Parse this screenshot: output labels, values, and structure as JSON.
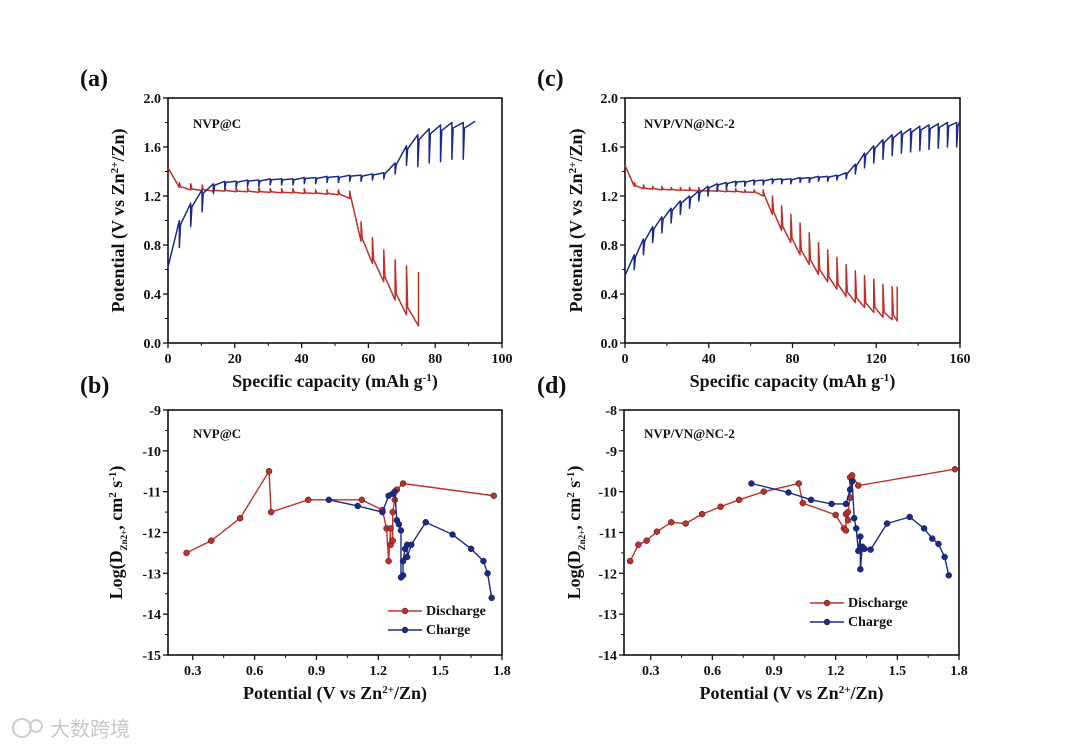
{
  "watermark": "大数跨境",
  "colors": {
    "discharge": "#c0302a",
    "charge": "#1a2a8c"
  },
  "chart_data": [
    {
      "id": "a",
      "panel_label": "(a)",
      "type": "line",
      "sample": "NVP@C",
      "xlabel": [
        {
          "t": "Specific capacity (mAh g"
        },
        {
          "t": "-1",
          "sup": true
        },
        {
          "t": ")"
        }
      ],
      "ylabel": [
        {
          "t": "Potential (V vs Zn"
        },
        {
          "t": "2+",
          "sup": true
        },
        {
          "t": "/Zn)"
        }
      ],
      "xlim": [
        0,
        100
      ],
      "ylim": [
        0,
        2.0
      ],
      "xticks": [
        "0",
        "20",
        "40",
        "60",
        "80",
        "100"
      ],
      "xtick_values": [
        0,
        20,
        40,
        60,
        80,
        100
      ],
      "yticks": [
        "0.0",
        "0.4",
        "0.8",
        "1.2",
        "1.6",
        "2.0"
      ],
      "ytick_values": [
        0,
        0.4,
        0.8,
        1.2,
        1.6,
        2.0
      ],
      "gitt": [
        {
          "name": "discharge",
          "start": [
            0,
            1.43
          ],
          "x": [
            3.4,
            6.8,
            10.2,
            13.6,
            17,
            20.4,
            23.8,
            27.2,
            30.6,
            34,
            37.4,
            40.8,
            44.2,
            47.6,
            51,
            54.4,
            57.8,
            61.2,
            64.6,
            68,
            71.4,
            75
          ],
          "end": [
            1.27,
            1.25,
            1.245,
            1.24,
            1.24,
            1.235,
            1.235,
            1.23,
            1.23,
            1.225,
            1.225,
            1.22,
            1.22,
            1.215,
            1.21,
            1.18,
            0.83,
            0.65,
            0.5,
            0.35,
            0.23,
            0.14
          ],
          "relaxed": [
            1.31,
            1.3,
            1.29,
            1.28,
            1.27,
            1.27,
            1.27,
            1.27,
            1.26,
            1.26,
            1.26,
            1.26,
            1.25,
            1.25,
            1.25,
            1.24,
            0.99,
            0.86,
            0.76,
            0.68,
            0.63,
            0.58
          ]
        },
        {
          "name": "charge",
          "start": [
            0,
            0.62
          ],
          "x": [
            3.4,
            6.8,
            10.2,
            13.6,
            17,
            20.4,
            23.8,
            27.2,
            30.6,
            34,
            37.4,
            40.8,
            44.2,
            47.6,
            51,
            54.4,
            57.8,
            61.2,
            64.6,
            68,
            71.4,
            74.8,
            78.2,
            81.6,
            85,
            88.4
          ],
          "end": [
            1.0,
            1.14,
            1.25,
            1.3,
            1.32,
            1.32,
            1.33,
            1.33,
            1.34,
            1.34,
            1.34,
            1.35,
            1.35,
            1.36,
            1.36,
            1.37,
            1.37,
            1.38,
            1.39,
            1.47,
            1.61,
            1.7,
            1.75,
            1.78,
            1.8,
            1.8
          ],
          "relaxed": [
            0.78,
            0.95,
            1.07,
            1.22,
            1.26,
            1.27,
            1.28,
            1.28,
            1.29,
            1.29,
            1.29,
            1.3,
            1.3,
            1.31,
            1.31,
            1.32,
            1.32,
            1.33,
            1.34,
            1.38,
            1.45,
            1.44,
            1.47,
            1.48,
            1.5,
            1.5
          ],
          "final": [
            92,
            1.81
          ]
        }
      ]
    },
    {
      "id": "b",
      "panel_label": "(b)",
      "type": "line",
      "sample": "NVP@C",
      "xlabel": [
        {
          "t": "Potential (V vs Zn"
        },
        {
          "t": "2+",
          "sup": true
        },
        {
          "t": "/Zn)"
        }
      ],
      "ylabel": [
        {
          "t": "Log(D"
        },
        {
          "t": "Zn2+",
          "sub": true
        },
        {
          "t": ", cm"
        },
        {
          "t": "2",
          "sup": true
        },
        {
          "t": " s"
        },
        {
          "t": "-1",
          "sup": true
        },
        {
          "t": ")"
        }
      ],
      "xlim": [
        0.18,
        1.8
      ],
      "ylim": [
        -15,
        -9
      ],
      "xticks": [
        "0.3",
        "0.6",
        "0.9",
        "1.2",
        "1.5",
        "1.8"
      ],
      "xtick_values": [
        0.3,
        0.6,
        0.9,
        1.2,
        1.5,
        1.8
      ],
      "yticks": [
        "-15",
        "-14",
        "-13",
        "-12",
        "-11",
        "-10",
        "-9"
      ],
      "ytick_values": [
        -15,
        -14,
        -13,
        -12,
        -11,
        -10,
        -9
      ],
      "legend": [
        "Discharge",
        "Charge"
      ],
      "legend_position": "bottom-right",
      "series": [
        {
          "name": "Discharge",
          "x": [
            0.27,
            0.39,
            0.53,
            0.67,
            0.68,
            0.86,
            1.12,
            1.22,
            1.24,
            1.25,
            1.26,
            1.26,
            1.27,
            1.27,
            1.28,
            1.29,
            1.32,
            1.76
          ],
          "y": [
            -12.5,
            -12.2,
            -11.65,
            -10.5,
            -11.5,
            -11.2,
            -11.2,
            -11.45,
            -11.9,
            -12.7,
            -11.9,
            -12.3,
            -12.2,
            -11.5,
            -11.2,
            -10.95,
            -10.8,
            -11.1
          ]
        },
        {
          "name": "Charge",
          "x": [
            0.96,
            1.1,
            1.22,
            1.25,
            1.27,
            1.28,
            1.29,
            1.3,
            1.31,
            1.31,
            1.32,
            1.32,
            1.33,
            1.34,
            1.34,
            1.36,
            1.43,
            1.56,
            1.65,
            1.71,
            1.73,
            1.75
          ],
          "y": [
            -11.2,
            -11.35,
            -11.5,
            -11.1,
            -11.05,
            -11.0,
            -11.7,
            -11.8,
            -11.95,
            -13.1,
            -13.05,
            -12.7,
            -12.4,
            -12.3,
            -12.6,
            -12.3,
            -11.75,
            -12.05,
            -12.4,
            -12.7,
            -13.0,
            -13.6
          ]
        }
      ]
    },
    {
      "id": "c",
      "panel_label": "(c)",
      "type": "line",
      "sample": "NVP/VN@NC-2",
      "xlabel": [
        {
          "t": "Specific capacity (mAh g"
        },
        {
          "t": "-1",
          "sup": true
        },
        {
          "t": ")"
        }
      ],
      "ylabel": [
        {
          "t": "Potential (V vs Zn"
        },
        {
          "t": "2+",
          "sup": true
        },
        {
          "t": "/Zn)"
        }
      ],
      "xlim": [
        0,
        160
      ],
      "ylim": [
        0,
        2.0
      ],
      "xticks": [
        "0",
        "40",
        "80",
        "120",
        "160"
      ],
      "xtick_values": [
        0,
        40,
        80,
        120,
        160
      ],
      "yticks": [
        "0.0",
        "0.4",
        "0.8",
        "1.2",
        "1.6",
        "2.0"
      ],
      "ytick_values": [
        0,
        0.4,
        0.8,
        1.2,
        1.6,
        2.0
      ],
      "gitt": [
        {
          "name": "discharge",
          "start": [
            0,
            1.45
          ],
          "x": [
            4.4,
            8.8,
            13.2,
            17.6,
            22,
            26.4,
            30.8,
            35.2,
            39.6,
            44,
            48.4,
            52.8,
            57.2,
            61.6,
            66,
            70.4,
            74.8,
            79.2,
            83.6,
            88,
            92.4,
            96.8,
            101.2,
            105.6,
            110,
            114.4,
            118.8,
            123.2,
            127.6,
            130
          ],
          "end": [
            1.28,
            1.26,
            1.255,
            1.25,
            1.25,
            1.245,
            1.245,
            1.24,
            1.24,
            1.24,
            1.235,
            1.235,
            1.23,
            1.23,
            1.2,
            1.05,
            0.92,
            0.82,
            0.72,
            0.64,
            0.56,
            0.5,
            0.44,
            0.38,
            0.33,
            0.29,
            0.25,
            0.21,
            0.19,
            0.18
          ],
          "relaxed": [
            1.31,
            1.29,
            1.28,
            1.28,
            1.27,
            1.27,
            1.27,
            1.27,
            1.26,
            1.26,
            1.26,
            1.26,
            1.25,
            1.25,
            1.25,
            1.2,
            1.12,
            1.05,
            0.98,
            0.9,
            0.82,
            0.76,
            0.7,
            0.64,
            0.59,
            0.55,
            0.52,
            0.48,
            0.46,
            0.46
          ]
        },
        {
          "name": "charge",
          "start": [
            0,
            0.55
          ],
          "x": [
            4.4,
            8.8,
            13.2,
            17.6,
            22,
            26.4,
            30.8,
            35.2,
            39.6,
            44,
            48.4,
            52.8,
            57.2,
            61.6,
            66,
            70.4,
            74.8,
            79.2,
            83.6,
            88,
            92.4,
            96.8,
            101.2,
            105.6,
            110,
            114.4,
            118.8,
            123.2,
            127.6,
            132,
            136.4,
            140.8,
            145.2,
            149.6,
            154,
            158.4
          ],
          "end": [
            0.72,
            0.85,
            0.95,
            1.03,
            1.1,
            1.16,
            1.2,
            1.24,
            1.28,
            1.3,
            1.31,
            1.32,
            1.32,
            1.33,
            1.33,
            1.34,
            1.34,
            1.34,
            1.35,
            1.35,
            1.36,
            1.36,
            1.37,
            1.39,
            1.46,
            1.55,
            1.61,
            1.66,
            1.7,
            1.73,
            1.75,
            1.77,
            1.78,
            1.79,
            1.8,
            1.8
          ],
          "relaxed": [
            0.6,
            0.72,
            0.82,
            0.9,
            0.98,
            1.05,
            1.1,
            1.16,
            1.2,
            1.24,
            1.26,
            1.28,
            1.28,
            1.29,
            1.29,
            1.3,
            1.3,
            1.3,
            1.31,
            1.31,
            1.32,
            1.32,
            1.33,
            1.34,
            1.38,
            1.43,
            1.47,
            1.5,
            1.53,
            1.55,
            1.56,
            1.57,
            1.58,
            1.59,
            1.6,
            1.6
          ],
          "final": [
            160,
            1.81
          ]
        }
      ]
    },
    {
      "id": "d",
      "panel_label": "(d)",
      "type": "line",
      "sample": "NVP/VN@NC-2",
      "xlabel": [
        {
          "t": "Potential (V vs Zn"
        },
        {
          "t": "2+",
          "sup": true
        },
        {
          "t": "/Zn)"
        }
      ],
      "ylabel": [
        {
          "t": "Log(D"
        },
        {
          "t": "Zn2+",
          "sub": true
        },
        {
          "t": ", cm"
        },
        {
          "t": "2",
          "sup": true
        },
        {
          "t": " s"
        },
        {
          "t": "-1",
          "sup": true
        },
        {
          "t": ")"
        }
      ],
      "xlim": [
        0.17,
        1.8
      ],
      "ylim": [
        -14,
        -8
      ],
      "xticks": [
        "0.3",
        "0.6",
        "0.9",
        "1.2",
        "1.5",
        "1.8"
      ],
      "xtick_values": [
        0.3,
        0.6,
        0.9,
        1.2,
        1.5,
        1.8
      ],
      "yticks": [
        "-14",
        "-13",
        "-12",
        "-11",
        "-10",
        "-9",
        "-8"
      ],
      "ytick_values": [
        -14,
        -13,
        -12,
        -11,
        -10,
        -9,
        -8
      ],
      "legend": [
        "Discharge",
        "Charge"
      ],
      "legend_position": "bottom-right",
      "series": [
        {
          "name": "Discharge",
          "x": [
            0.2,
            0.24,
            0.28,
            0.33,
            0.4,
            0.47,
            0.55,
            0.64,
            0.73,
            0.85,
            1.02,
            1.04,
            1.2,
            1.24,
            1.25,
            1.25,
            1.26,
            1.26,
            1.27,
            1.27,
            1.28,
            1.31,
            1.78
          ],
          "y": [
            -11.7,
            -11.3,
            -11.2,
            -10.98,
            -10.75,
            -10.78,
            -10.55,
            -10.37,
            -10.2,
            -10.0,
            -9.8,
            -10.28,
            -10.57,
            -10.9,
            -10.95,
            -10.55,
            -10.7,
            -10.5,
            -10.15,
            -9.65,
            -9.6,
            -9.85,
            -9.45
          ]
        },
        {
          "name": "Charge",
          "x": [
            0.79,
            0.97,
            1.08,
            1.18,
            1.25,
            1.27,
            1.28,
            1.29,
            1.3,
            1.31,
            1.32,
            1.32,
            1.33,
            1.34,
            1.37,
            1.45,
            1.56,
            1.63,
            1.67,
            1.7,
            1.73,
            1.75
          ],
          "y": [
            -9.8,
            -10.02,
            -10.2,
            -10.3,
            -10.3,
            -9.95,
            -9.75,
            -10.65,
            -10.9,
            -11.45,
            -11.1,
            -11.9,
            -11.35,
            -11.4,
            -11.42,
            -10.78,
            -10.62,
            -10.9,
            -11.15,
            -11.28,
            -11.6,
            -12.05
          ]
        }
      ]
    }
  ]
}
